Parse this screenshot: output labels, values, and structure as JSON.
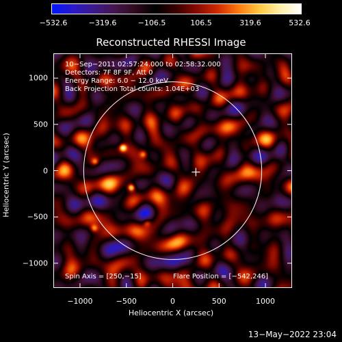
{
  "colorbar": {
    "ticks": [
      "-532.6",
      "-319.6",
      "-106.5",
      "106.5",
      "319.6",
      "532.6"
    ],
    "stops": [
      "#0018ff",
      "#2a19c8",
      "#3b1a8a",
      "#45164f",
      "#300a1e",
      "#000000",
      "#3a0000",
      "#8a0a00",
      "#d22b00",
      "#ff7a10",
      "#ffc840",
      "#fff0a8",
      "#ffffff"
    ]
  },
  "chart_data": {
    "type": "heatmap",
    "title": "Reconstructed RHESSI Image",
    "xlabel": "Heliocentric X (arcsec)",
    "ylabel": "Heliocentric Y (arcsec)",
    "xlim": [
      -1280,
      1280
    ],
    "ylim": [
      -1260,
      1260
    ],
    "xticks": [
      -1000,
      -500,
      0,
      500,
      1000
    ],
    "yticks": [
      1000,
      500,
      0,
      -500,
      -1000
    ],
    "xtick_labels": [
      "−1000",
      "−500",
      "0",
      "500",
      "1000"
    ],
    "ytick_labels": [
      "1000",
      "500",
      "0",
      "−500",
      "−1000"
    ],
    "color_range": [
      -532.6,
      532.6
    ],
    "solar_limb_radius": 960,
    "solar_limb_center": [
      0,
      0
    ],
    "spin_axis": [
      250,
      -15
    ],
    "flare_position": [
      -542,
      246
    ],
    "bright_sources": [
      {
        "x": -540,
        "y": 250,
        "value": 480
      },
      {
        "x": -450,
        "y": -180,
        "value": 520
      },
      {
        "x": -840,
        "y": 100,
        "value": 300
      },
      {
        "x": -320,
        "y": 180,
        "value": 300
      },
      {
        "x": -850,
        "y": -620,
        "value": 280
      },
      {
        "x": -280,
        "y": -560,
        "value": 260
      }
    ],
    "info_lines": [
      "10−Sep−2011 02:57:24.000 to 02:58:32.000",
      "Detectors: 7F 8F 9F, Att 0",
      "Energy Range: 6.0 − 12.0 keV",
      "Back Projection    Total counts: 1.04E+03"
    ],
    "bottom_left_label": "Spin Axis = [250,−15]",
    "bottom_right_label": "Flare Position = [−542,246]"
  },
  "timestamp": "13−May−2022 23:04"
}
